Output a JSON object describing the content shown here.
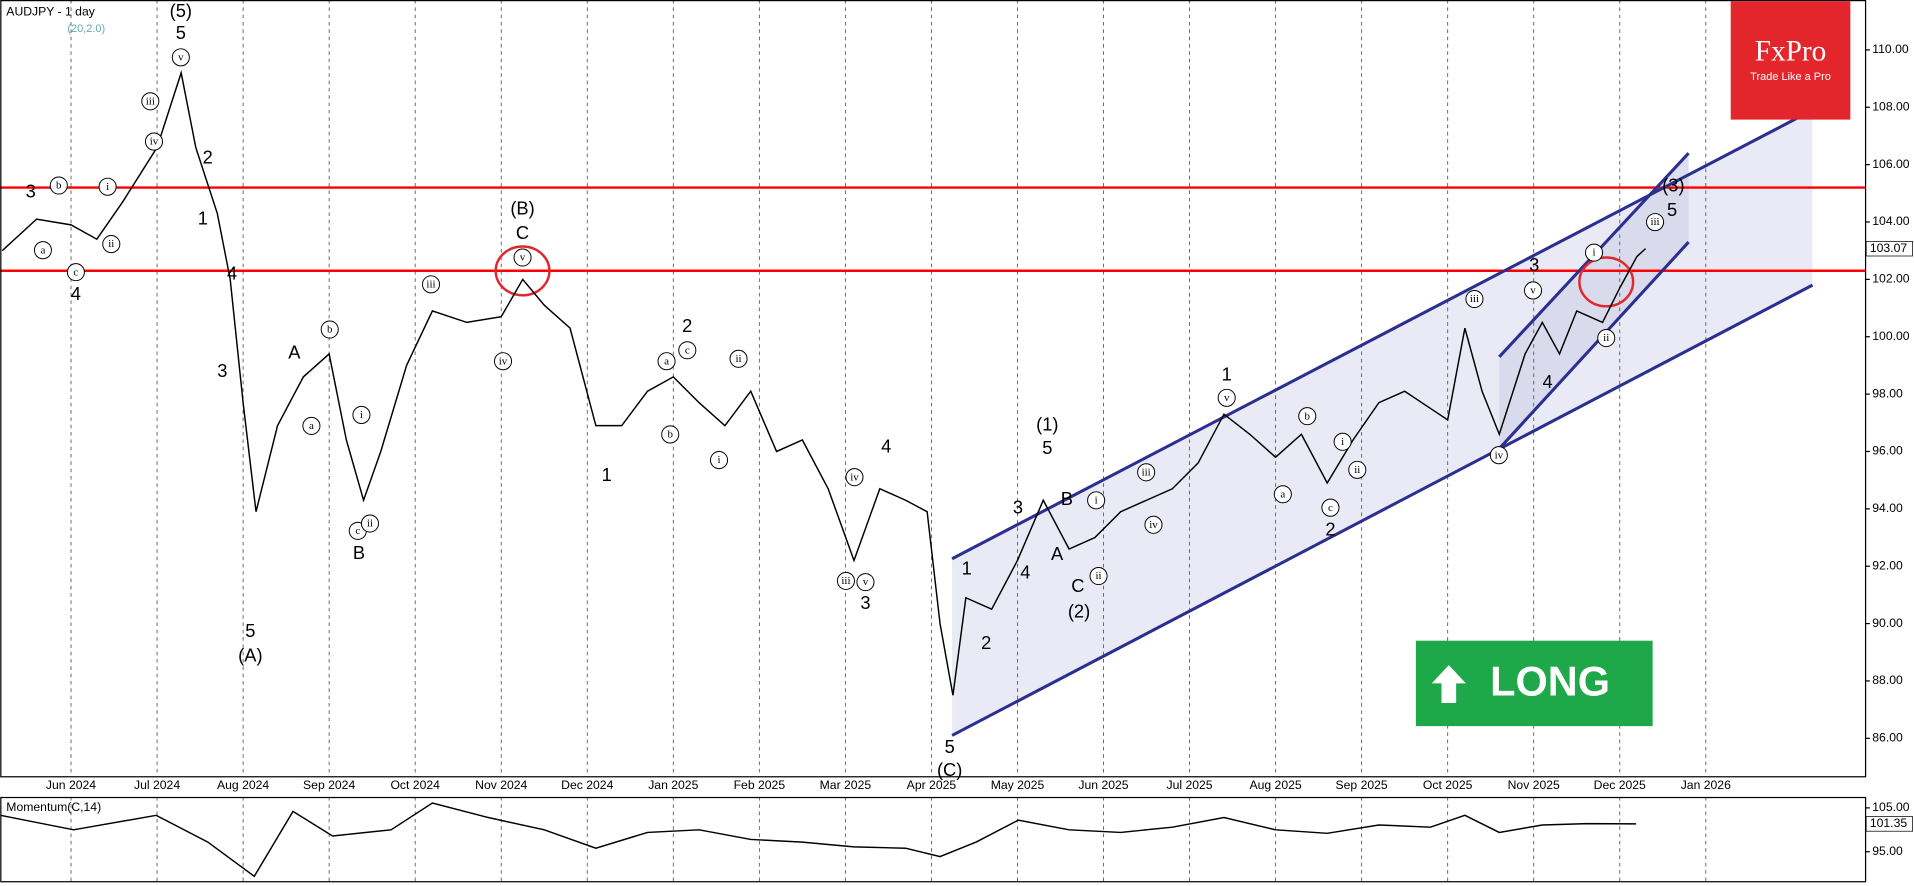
{
  "chart_data": [
    {
      "type": "line",
      "title": "AUDJPY - 1 day",
      "subtitle": "(20,2.0)",
      "color": "#000000",
      "xlim": [
        -0.823,
        20.85
      ],
      "ylim": [
        84.68,
        111.74
      ],
      "xticks": [
        {
          "value": 0,
          "label": "Jun 2024"
        },
        {
          "value": 1,
          "label": "Jul 2024"
        },
        {
          "value": 2,
          "label": "Aug 2024"
        },
        {
          "value": 3,
          "label": "Sep 2024"
        },
        {
          "value": 4,
          "label": "Oct 2024"
        },
        {
          "value": 5,
          "label": "Nov 2024"
        },
        {
          "value": 6,
          "label": "Dec 2024"
        },
        {
          "value": 7,
          "label": "Jan 2025"
        },
        {
          "value": 8,
          "label": "Feb 2025"
        },
        {
          "value": 9,
          "label": "Mar 2025"
        },
        {
          "value": 10,
          "label": "Apr 2025"
        },
        {
          "value": 11,
          "label": "May 2025"
        },
        {
          "value": 12,
          "label": "Jun 2025"
        },
        {
          "value": 13,
          "label": "Jul 2025"
        },
        {
          "value": 14,
          "label": "Aug 2025"
        },
        {
          "value": 15,
          "label": "Sep 2025"
        },
        {
          "value": 16,
          "label": "Oct 2025"
        },
        {
          "value": 17,
          "label": "Nov 2025"
        },
        {
          "value": 18,
          "label": "Dec 2025"
        },
        {
          "value": 19,
          "label": "Jan 2026"
        }
      ],
      "yticks": [
        {
          "value": 86,
          "label": "86.00"
        },
        {
          "value": 88,
          "label": "88.00"
        },
        {
          "value": 90,
          "label": "90.00"
        },
        {
          "value": 92,
          "label": "92.00"
        },
        {
          "value": 94,
          "label": "94.00"
        },
        {
          "value": 96,
          "label": "96.00"
        },
        {
          "value": 98,
          "label": "98.00"
        },
        {
          "value": 100,
          "label": "100.00"
        },
        {
          "value": 102,
          "label": "102.00"
        },
        {
          "value": 104,
          "label": "104.00"
        },
        {
          "value": 106,
          "label": "106.00"
        },
        {
          "value": 108,
          "label": "108.00"
        },
        {
          "value": 110,
          "label": "110.00"
        }
      ],
      "last_price": 103.07,
      "x": [
        -0.8,
        -0.4,
        0,
        0.3,
        0.6,
        1,
        1.28,
        1.45,
        1.7,
        1.85,
        2.0,
        2.15,
        2.4,
        2.7,
        3.0,
        3.2,
        3.4,
        3.6,
        3.9,
        4.2,
        4.6,
        5.0,
        5.25,
        5.5,
        5.8,
        6.1,
        6.4,
        6.7,
        7.0,
        7.3,
        7.6,
        7.9,
        8.2,
        8.5,
        8.8,
        9.1,
        9.4,
        9.7,
        9.95,
        10.1,
        10.25,
        10.4,
        10.7,
        11.0,
        11.3,
        11.6,
        11.9,
        12.2,
        12.5,
        12.8,
        13.1,
        13.4,
        13.7,
        14.0,
        14.3,
        14.6,
        14.9,
        15.2,
        15.5,
        15.8,
        16.0,
        16.2,
        16.4,
        16.6,
        16.9,
        17.1,
        17.3,
        17.5,
        17.8,
        18.0,
        18.2,
        18.3
      ],
      "values": [
        103.0,
        104.1,
        103.9,
        103.4,
        104.7,
        106.6,
        109.2,
        106.6,
        104.3,
        102.0,
        97.7,
        93.9,
        96.9,
        98.6,
        99.4,
        96.4,
        94.3,
        96.0,
        99.0,
        100.9,
        100.5,
        100.7,
        102.0,
        101.1,
        100.3,
        96.9,
        96.9,
        98.1,
        98.6,
        97.7,
        96.9,
        98.1,
        96.0,
        96.4,
        94.7,
        92.2,
        94.7,
        94.3,
        93.9,
        90.0,
        87.5,
        90.9,
        90.5,
        92.2,
        94.3,
        92.6,
        93.0,
        93.9,
        94.3,
        94.7,
        95.6,
        97.3,
        96.6,
        95.8,
        96.6,
        94.9,
        96.4,
        97.7,
        98.1,
        97.5,
        97.1,
        100.3,
        98.1,
        96.6,
        99.4,
        100.5,
        99.4,
        100.9,
        100.5,
        101.7,
        102.8,
        103.07
      ],
      "hlines": [
        105.2,
        102.3
      ],
      "hline_color": "#ff0000",
      "channels": [
        {
          "x": [
            10.24,
            20.24
          ],
          "values": [
            92.26,
            107.9
          ]
        },
        {
          "x": [
            10.24,
            20.24
          ],
          "values": [
            86.1,
            101.8
          ]
        },
        {
          "x": [
            16.6,
            18.8
          ],
          "values": [
            99.3,
            106.4
          ]
        },
        {
          "x": [
            16.6,
            18.8
          ],
          "values": [
            96.1,
            103.3
          ]
        }
      ],
      "channel_color": "#2b2f8f",
      "wave_labels": [
        "(5)",
        "5",
        "3",
        "4",
        "2",
        "1",
        "4",
        "3",
        "5",
        "(A)",
        "A",
        "B",
        "(B)",
        "C",
        "1",
        "2",
        "3",
        "4",
        "5",
        "(C)",
        "1",
        "2",
        "3",
        "4",
        "(1)",
        "5",
        "A",
        "B",
        "C",
        "(2)",
        "1",
        "2",
        "3",
        "4",
        "(3)",
        "5"
      ],
      "wave_circled_labels": [
        "v",
        "iii",
        "iv",
        "b",
        "a",
        "c",
        "i",
        "ii",
        "b",
        "a",
        "c",
        "ii",
        "i",
        "iii",
        "iv",
        "v",
        "a",
        "b",
        "c",
        "i",
        "ii",
        "iii",
        "iv",
        "v",
        "i",
        "ii",
        "iii",
        "iv",
        "v",
        "a",
        "b",
        "c",
        "i",
        "ii",
        "iii",
        "iv",
        "v",
        "i",
        "ii",
        "iii"
      ]
    },
    {
      "type": "line",
      "title": "Momentum(C,14)",
      "color": "#000000",
      "xlim": [
        -0.823,
        20.85
      ],
      "ylim": [
        88.3,
        107.5
      ],
      "yticks": [
        {
          "value": 105,
          "label": "105.00"
        },
        {
          "value": 95,
          "label": "95.00"
        }
      ],
      "last_value": 101.35,
      "x": [
        -0.82,
        0.03,
        0.99,
        1.59,
        2.13,
        2.58,
        3.04,
        3.72,
        4.2,
        4.85,
        5.5,
        6.1,
        6.7,
        7.3,
        7.9,
        8.5,
        9.1,
        9.7,
        10.1,
        10.52,
        11.01,
        11.6,
        12.2,
        12.8,
        13.4,
        14.0,
        14.6,
        15.2,
        15.8,
        16.2,
        16.6,
        17.1,
        17.62,
        18.19
      ],
      "values": [
        103.3,
        100.0,
        103.3,
        97.2,
        89.4,
        104.2,
        98.6,
        100.0,
        106.1,
        102.8,
        100.0,
        95.8,
        99.4,
        100.0,
        97.8,
        97.2,
        96.1,
        95.8,
        93.9,
        97.2,
        102.2,
        100.0,
        99.4,
        100.6,
        102.8,
        100.0,
        99.2,
        101.1,
        100.6,
        103.3,
        99.4,
        101.1,
        101.4,
        101.35
      ]
    }
  ],
  "branding": {
    "logo": "FxPro",
    "tagline": "Trade Like a Pro"
  },
  "signal": {
    "label": "LONG"
  }
}
